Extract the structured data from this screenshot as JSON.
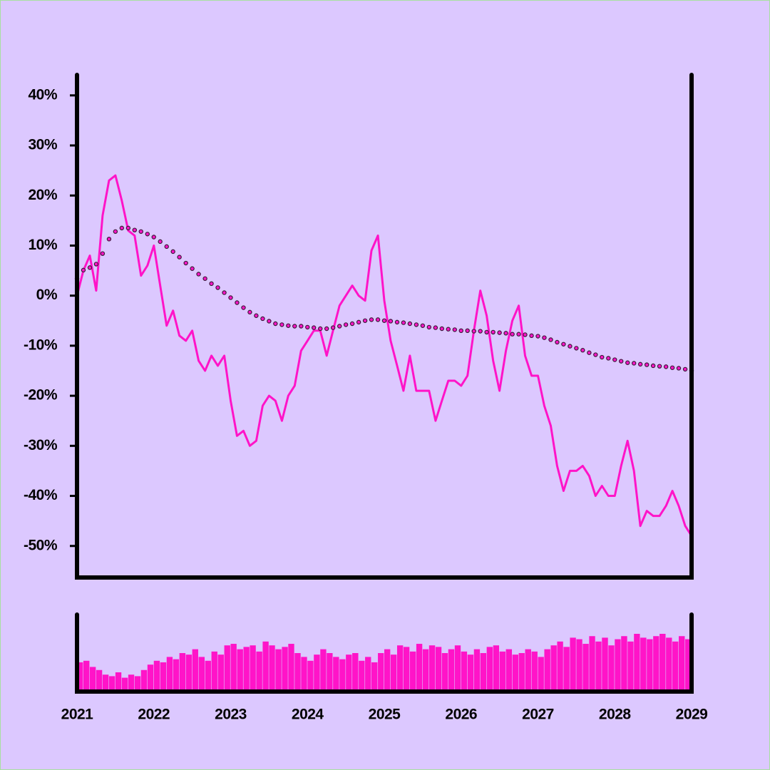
{
  "chart_data": [
    {
      "type": "line",
      "x": [
        2021,
        2021.083,
        2021.167,
        2021.25,
        2021.333,
        2021.417,
        2021.5,
        2021.583,
        2021.667,
        2021.75,
        2021.833,
        2021.917,
        2022,
        2022.083,
        2022.167,
        2022.25,
        2022.333,
        2022.417,
        2022.5,
        2022.583,
        2022.667,
        2022.75,
        2022.833,
        2022.917,
        2023,
        2023.083,
        2023.167,
        2023.25,
        2023.333,
        2023.417,
        2023.5,
        2023.583,
        2023.667,
        2023.75,
        2023.833,
        2023.917,
        2024,
        2024.083,
        2024.167,
        2024.25,
        2024.333,
        2024.417,
        2024.5,
        2024.583,
        2024.667,
        2024.75,
        2024.833,
        2024.917,
        2025,
        2025.083,
        2025.167,
        2025.25,
        2025.333,
        2025.417,
        2025.5,
        2025.583,
        2025.667,
        2025.75,
        2025.833,
        2025.917,
        2026,
        2026.083,
        2026.167,
        2026.25,
        2026.333,
        2026.417,
        2026.5,
        2026.583,
        2026.667,
        2026.75,
        2026.833,
        2026.917,
        2027,
        2027.083,
        2027.167,
        2027.25,
        2027.333,
        2027.417,
        2027.5,
        2027.583,
        2027.667,
        2027.75,
        2027.833,
        2027.917,
        2028,
        2028.083,
        2028.167,
        2028.25,
        2028.333,
        2028.417,
        2028.5,
        2028.583,
        2028.667,
        2028.75,
        2028.833,
        2028.917,
        2029
      ],
      "series": [
        {
          "color": "#ff14c8",
          "style": "line",
          "values": [
            0,
            5,
            8,
            1,
            16,
            23,
            24,
            19,
            13,
            12,
            4,
            6,
            10,
            2,
            -6,
            -3,
            -8,
            -9,
            -7,
            -13,
            -15,
            -12,
            -14,
            -12,
            -21,
            -28,
            -27,
            -30,
            -29,
            -22,
            -20,
            -21,
            -25,
            -20,
            -18,
            -11,
            -9,
            -7,
            -7,
            -12,
            -7,
            -2,
            0,
            2,
            0,
            -1,
            9,
            12,
            -1,
            -9,
            -14,
            -19,
            -12,
            -19,
            -19,
            -19,
            -25,
            -21,
            -17,
            -17,
            -18,
            -16,
            -7,
            1,
            -4,
            -13,
            -19,
            -11,
            -5,
            -2,
            -12,
            -16,
            -16,
            -22,
            -26,
            -34,
            -39,
            -35,
            -35,
            -34,
            -36,
            -40,
            -38,
            -40,
            -40,
            -34,
            -29,
            -35,
            -46,
            -43,
            -44,
            -44,
            -42,
            -39,
            -42,
            -46,
            -48
          ]
        },
        {
          "color": "#ff14c8",
          "stroke": "#3a1a3a",
          "style": "dots",
          "values": [
            3.4,
            5.1,
            5.6,
            6.3,
            8.4,
            11.3,
            12.8,
            13.5,
            13.5,
            13.1,
            12.8,
            12.3,
            11.7,
            10.8,
            9.8,
            8.8,
            7.7,
            6.5,
            5.4,
            4.3,
            3.4,
            2.4,
            1.6,
            0.6,
            -0.4,
            -1.4,
            -2.4,
            -3.3,
            -4,
            -4.6,
            -5.1,
            -5.6,
            -5.8,
            -6,
            -6.1,
            -6.1,
            -6.3,
            -6.4,
            -6.6,
            -6.6,
            -6.4,
            -6.1,
            -5.8,
            -5.6,
            -5.3,
            -5,
            -4.8,
            -4.8,
            -5,
            -5.1,
            -5.3,
            -5.4,
            -5.6,
            -5.8,
            -6,
            -6.3,
            -6.4,
            -6.6,
            -6.7,
            -6.8,
            -7,
            -7,
            -7.1,
            -7.1,
            -7.3,
            -7.3,
            -7.4,
            -7.5,
            -7.7,
            -7.7,
            -7.8,
            -8,
            -8.1,
            -8.4,
            -8.8,
            -9.3,
            -9.7,
            -10.1,
            -10.5,
            -10.9,
            -11.4,
            -11.8,
            -12.3,
            -12.5,
            -12.8,
            -13.1,
            -13.4,
            -13.5,
            -13.7,
            -13.8,
            -14,
            -14.1,
            -14.2,
            -14.4,
            -14.5,
            -14.7,
            -15
          ]
        }
      ],
      "xlim": [
        2021,
        2029
      ],
      "ylim": [
        -56.3,
        44.1
      ],
      "yticks": [
        {
          "value": 40,
          "label": "40%"
        },
        {
          "value": 30,
          "label": "30%"
        },
        {
          "value": 20,
          "label": "20%"
        },
        {
          "value": 10,
          "label": "10%"
        },
        {
          "value": 0,
          "label": "0%"
        },
        {
          "value": -10,
          "label": "-10%"
        },
        {
          "value": -20,
          "label": "-20%"
        },
        {
          "value": -30,
          "label": "-30%"
        },
        {
          "value": -40,
          "label": "-40%"
        },
        {
          "value": -50,
          "label": "-50%"
        }
      ]
    },
    {
      "type": "bar",
      "color": "#ff14c8",
      "x": [
        2021,
        2021.083,
        2021.167,
        2021.25,
        2021.333,
        2021.417,
        2021.5,
        2021.583,
        2021.667,
        2021.75,
        2021.833,
        2021.917,
        2022,
        2022.083,
        2022.167,
        2022.25,
        2022.333,
        2022.417,
        2022.5,
        2022.583,
        2022.667,
        2022.75,
        2022.833,
        2022.917,
        2023,
        2023.083,
        2023.167,
        2023.25,
        2023.333,
        2023.417,
        2023.5,
        2023.583,
        2023.667,
        2023.75,
        2023.833,
        2023.917,
        2024,
        2024.083,
        2024.167,
        2024.25,
        2024.333,
        2024.417,
        2024.5,
        2024.583,
        2024.667,
        2024.75,
        2024.833,
        2024.917,
        2025,
        2025.083,
        2025.167,
        2025.25,
        2025.333,
        2025.417,
        2025.5,
        2025.583,
        2025.667,
        2025.75,
        2025.833,
        2025.917,
        2026,
        2026.083,
        2026.167,
        2026.25,
        2026.333,
        2026.417,
        2026.5,
        2026.583,
        2026.667,
        2026.75,
        2026.833,
        2026.917,
        2027,
        2027.083,
        2027.167,
        2027.25,
        2027.333,
        2027.417,
        2027.5,
        2027.583,
        2027.667,
        2027.75,
        2027.833,
        2027.917,
        2028,
        2028.083,
        2028.167,
        2028.25,
        2028.333,
        2028.417,
        2028.5,
        2028.583,
        2028.667,
        2028.75,
        2028.833,
        2028.917
      ],
      "values": [
        38,
        40,
        32,
        28,
        22,
        20,
        25,
        18,
        22,
        20,
        28,
        35,
        40,
        38,
        45,
        42,
        50,
        48,
        55,
        45,
        40,
        52,
        48,
        60,
        62,
        55,
        58,
        60,
        52,
        65,
        60,
        55,
        58,
        62,
        50,
        45,
        40,
        48,
        55,
        50,
        45,
        42,
        48,
        50,
        40,
        45,
        38,
        50,
        55,
        48,
        60,
        58,
        52,
        62,
        55,
        60,
        58,
        50,
        55,
        60,
        52,
        48,
        55,
        50,
        58,
        60,
        52,
        55,
        48,
        50,
        55,
        52,
        45,
        55,
        60,
        65,
        58,
        70,
        68,
        62,
        72,
        65,
        70,
        60,
        68,
        72,
        65,
        75,
        70,
        68,
        72,
        75,
        70,
        65,
        72,
        68
      ],
      "xlim": [
        2021,
        2029
      ],
      "ylim": [
        0,
        100
      ],
      "xticks": [
        2021,
        2022,
        2023,
        2024,
        2025,
        2026,
        2027,
        2028,
        2029
      ]
    }
  ]
}
